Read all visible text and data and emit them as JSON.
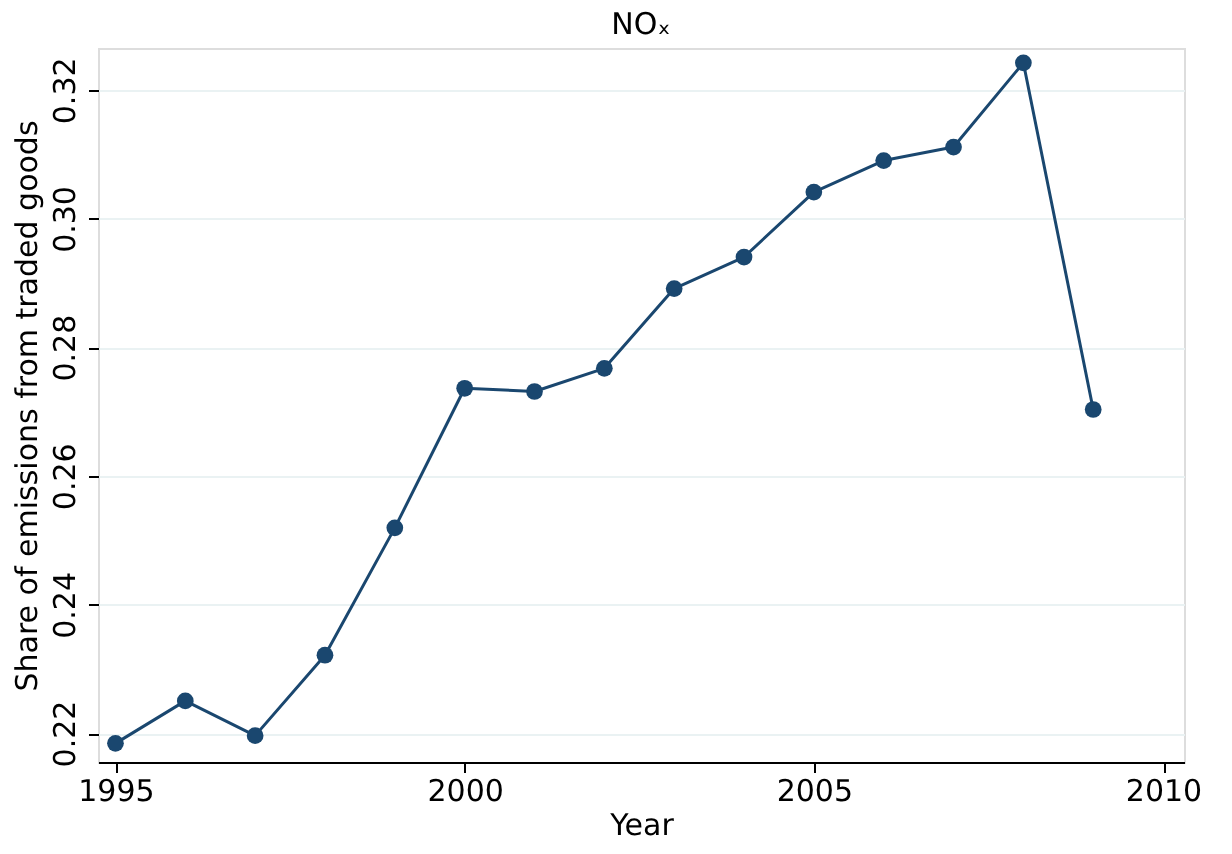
{
  "chart_data": {
    "type": "line",
    "title": "NOₓ",
    "xlabel": "Year",
    "ylabel": "Share of emissions from traded goods",
    "x": [
      1995,
      1996,
      1997,
      1998,
      1999,
      2000,
      2001,
      2002,
      2003,
      2004,
      2005,
      2006,
      2007,
      2008,
      2009
    ],
    "series": [
      {
        "color": "#1a476f",
        "values": [
          0.2184,
          0.225,
          0.2196,
          0.2321,
          0.2519,
          0.2736,
          0.2731,
          0.2767,
          0.2891,
          0.294,
          0.3041,
          0.309,
          0.3111,
          0.3242,
          0.2703
        ]
      }
    ],
    "xlim": [
      1994.75,
      2010.3
    ],
    "xticks": [
      1995,
      2000,
      2005,
      2010
    ],
    "ylim": [
      0.2155,
      0.3265
    ],
    "yticks": [
      {
        "value": 0.22,
        "label": "0.22"
      },
      {
        "value": 0.24,
        "label": "0.24"
      },
      {
        "value": 0.26,
        "label": "0.26"
      },
      {
        "value": 0.28,
        "label": "0.28"
      },
      {
        "value": 0.3,
        "label": "0.30"
      },
      {
        "value": 0.32,
        "label": "0.32"
      }
    ],
    "grid": "y",
    "marker": "circle",
    "line_style": "solid"
  }
}
